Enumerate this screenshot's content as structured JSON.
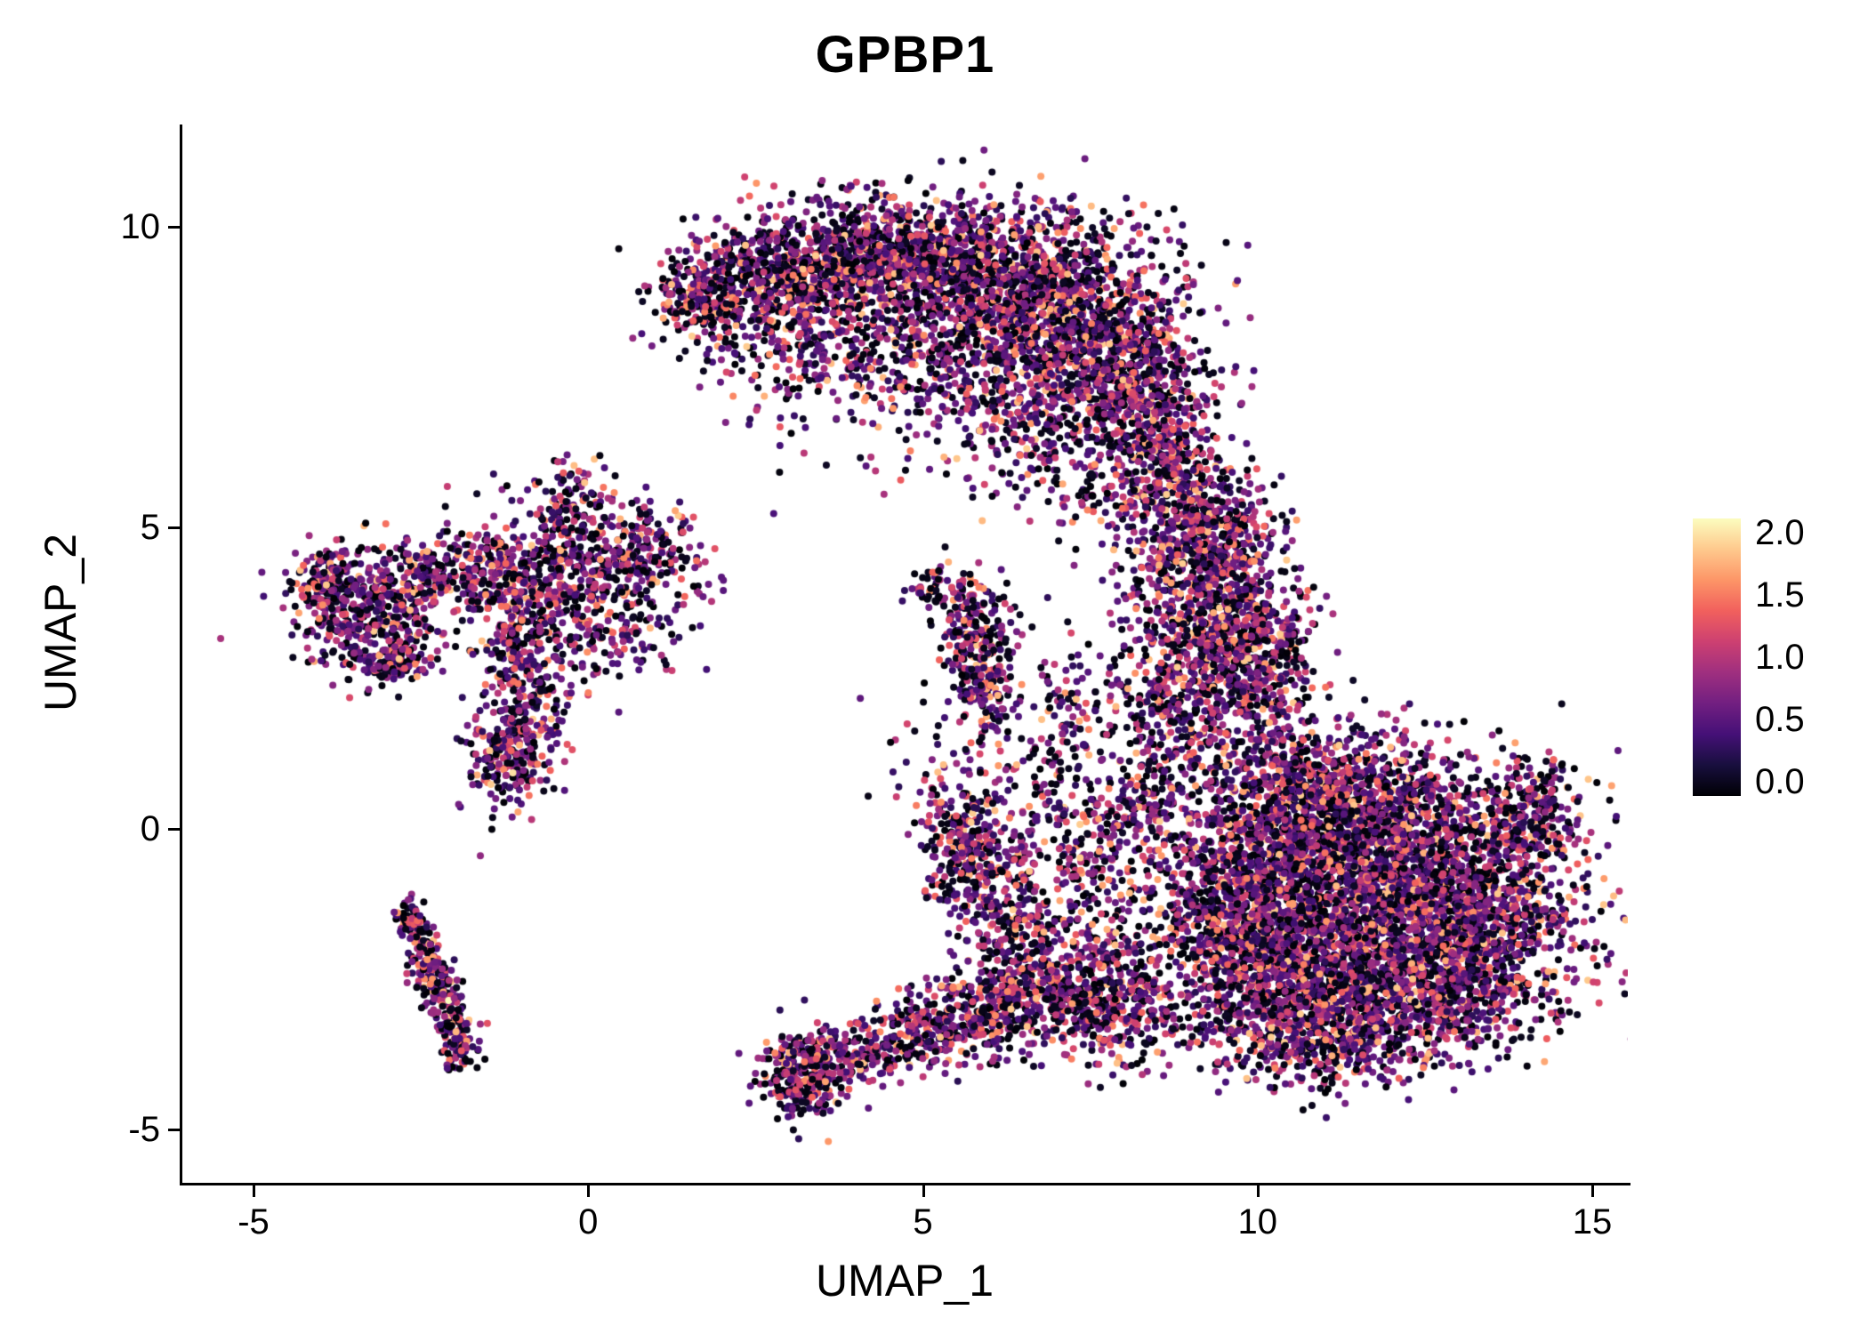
{
  "chart_data": {
    "type": "scatter",
    "title": "GPBP1",
    "xlabel": "UMAP_1",
    "ylabel": "UMAP_2",
    "x_ticks": [
      -5,
      0,
      5,
      10,
      15
    ],
    "y_ticks": [
      -5,
      0,
      5,
      10
    ],
    "xlim": [
      -6.1,
      15.6
    ],
    "ylim": [
      -5.9,
      11.7
    ],
    "grid": false,
    "legend_position": "right",
    "point_radius": 4,
    "colorbar": {
      "vmin": 0.0,
      "vmax": 2.0,
      "ticks": [
        0.0,
        0.5,
        1.0,
        1.5,
        2.0
      ],
      "tick_labels": [
        "0.0",
        "0.5",
        "1.0",
        "1.5",
        "2.0"
      ],
      "palette_name": "magma",
      "stops": [
        "#000004",
        "#180f3e",
        "#451077",
        "#721f81",
        "#9f2f7f",
        "#cd4071",
        "#f1605d",
        "#fd9567",
        "#fec98d",
        "#fcfdbf"
      ]
    },
    "clusters_format": [
      "center_x",
      "center_y",
      "sd_x",
      "sd_y",
      "n_points"
    ],
    "clusters": [
      [
        1.6,
        8.8,
        0.35,
        0.35,
        160
      ],
      [
        2.4,
        9.0,
        0.55,
        0.45,
        330
      ],
      [
        3.5,
        9.4,
        0.8,
        0.5,
        480
      ],
      [
        4.8,
        9.5,
        0.9,
        0.55,
        650
      ],
      [
        6.2,
        9.0,
        1.0,
        0.7,
        900
      ],
      [
        7.3,
        8.2,
        0.8,
        0.8,
        800
      ],
      [
        8.3,
        7.0,
        0.55,
        0.8,
        550
      ],
      [
        8.7,
        5.9,
        0.4,
        0.5,
        220
      ],
      [
        4.4,
        8.2,
        1.1,
        0.6,
        260
      ],
      [
        3.3,
        7.6,
        0.6,
        0.5,
        90
      ],
      [
        5.6,
        7.3,
        0.9,
        0.5,
        160
      ],
      [
        6.8,
        6.5,
        0.6,
        0.6,
        200
      ],
      [
        4.0,
        6.8,
        1.2,
        0.5,
        40
      ],
      [
        7.9,
        5.3,
        0.5,
        0.4,
        60
      ],
      [
        9.3,
        4.8,
        0.5,
        0.6,
        450
      ],
      [
        9.6,
        3.4,
        0.55,
        0.7,
        500
      ],
      [
        9.0,
        2.2,
        0.7,
        0.6,
        350
      ],
      [
        10.1,
        2.6,
        0.4,
        0.6,
        200
      ],
      [
        8.5,
        3.8,
        0.3,
        0.8,
        120
      ],
      [
        10.8,
        0.6,
        1.0,
        0.6,
        900
      ],
      [
        12.0,
        0.1,
        1.2,
        0.6,
        800
      ],
      [
        11.3,
        -1.0,
        1.5,
        0.7,
        1500
      ],
      [
        11.6,
        -2.2,
        1.5,
        0.7,
        1400
      ],
      [
        13.3,
        -1.4,
        0.7,
        0.8,
        600
      ],
      [
        12.3,
        -3.1,
        0.9,
        0.5,
        450
      ],
      [
        10.2,
        -2.8,
        0.8,
        0.6,
        450
      ],
      [
        9.6,
        -1.4,
        0.6,
        0.8,
        400
      ],
      [
        14.2,
        0.3,
        0.3,
        0.5,
        130
      ],
      [
        10.8,
        -3.7,
        0.7,
        0.3,
        200
      ],
      [
        -3.2,
        3.6,
        0.55,
        0.55,
        420
      ],
      [
        -3.9,
        4.1,
        0.25,
        0.3,
        130
      ],
      [
        -2.9,
        2.8,
        0.3,
        0.25,
        110
      ],
      [
        -2.4,
        4.3,
        0.3,
        0.3,
        90
      ],
      [
        -0.4,
        4.3,
        0.75,
        0.55,
        420
      ],
      [
        -0.9,
        3.2,
        0.45,
        0.6,
        240
      ],
      [
        -1.0,
        2.0,
        0.35,
        0.5,
        180
      ],
      [
        -1.2,
        1.1,
        0.3,
        0.4,
        160
      ],
      [
        -0.2,
        5.4,
        0.45,
        0.35,
        110
      ],
      [
        0.9,
        4.6,
        0.5,
        0.35,
        150
      ],
      [
        0.5,
        3.4,
        0.5,
        0.5,
        140
      ],
      [
        -1.6,
        4.4,
        0.3,
        0.3,
        90
      ],
      [
        5.3,
        4.0,
        0.25,
        0.22,
        70
      ],
      [
        5.8,
        3.2,
        0.28,
        0.45,
        190
      ],
      [
        5.9,
        2.3,
        0.25,
        0.4,
        110
      ],
      [
        -2.65,
        -1.5,
        0.12,
        0.2,
        60
      ],
      [
        -2.45,
        -2.1,
        0.13,
        0.22,
        80
      ],
      [
        -2.25,
        -2.6,
        0.13,
        0.22,
        80
      ],
      [
        -2.05,
        -3.1,
        0.13,
        0.22,
        80
      ],
      [
        -1.9,
        -3.6,
        0.12,
        0.22,
        70
      ],
      [
        3.2,
        -4.1,
        0.3,
        0.35,
        260
      ],
      [
        4.0,
        -3.8,
        0.45,
        0.3,
        160
      ],
      [
        5.0,
        -3.4,
        0.5,
        0.32,
        200
      ],
      [
        6.0,
        -3.0,
        0.55,
        0.38,
        260
      ],
      [
        7.0,
        -2.7,
        0.6,
        0.45,
        300
      ],
      [
        8.0,
        -3.0,
        0.6,
        0.45,
        280
      ],
      [
        5.6,
        -0.2,
        0.3,
        0.5,
        220
      ],
      [
        6.1,
        -1.1,
        0.4,
        0.5,
        170
      ],
      [
        6.9,
        0.2,
        0.5,
        0.9,
        140
      ],
      [
        7.1,
        1.6,
        0.25,
        0.8,
        90
      ],
      [
        7.7,
        -0.6,
        0.45,
        0.9,
        160
      ],
      [
        8.4,
        0.7,
        0.4,
        0.6,
        150
      ],
      [
        6.6,
        -1.9,
        0.5,
        0.4,
        150
      ],
      [
        5.5,
        1.2,
        0.6,
        0.6,
        40
      ]
    ]
  }
}
